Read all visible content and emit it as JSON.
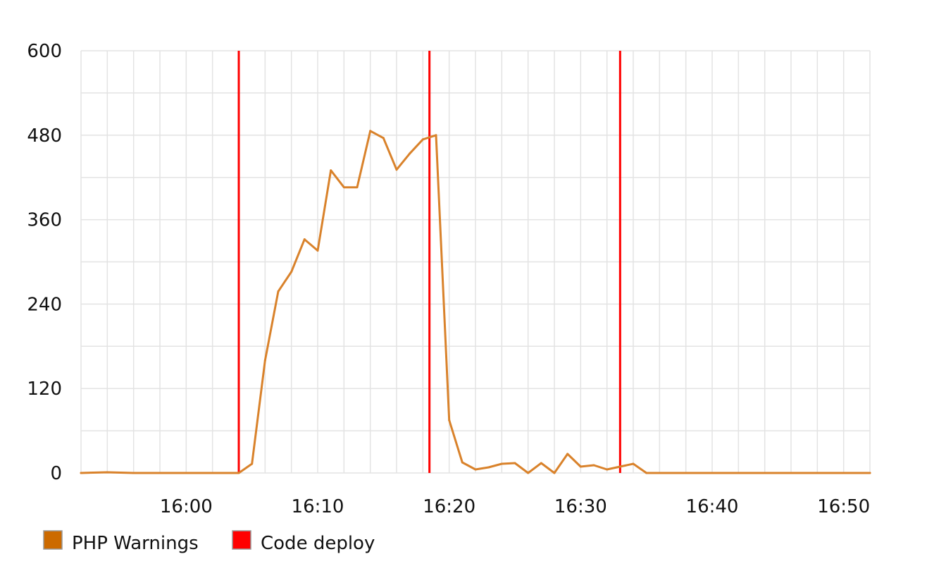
{
  "chart_data": {
    "type": "line",
    "title": "",
    "xlabel": "",
    "ylabel": "",
    "ylim": [
      0,
      600
    ],
    "yticks": [
      0,
      120,
      240,
      360,
      480,
      600
    ],
    "xlim": [
      "15:52",
      "16:52"
    ],
    "xticks": [
      "16:00",
      "16:10",
      "16:20",
      "16:30",
      "16:40",
      "16:50"
    ],
    "grid": true,
    "legend_position": "bottom-left",
    "series": [
      {
        "name": "PHP Warnings",
        "color": "#d9822b",
        "x": [
          "15:52",
          "15:54",
          "15:56",
          "15:58",
          "16:00",
          "16:02",
          "16:04",
          "16:05",
          "16:06",
          "16:07",
          "16:08",
          "16:09",
          "16:10",
          "16:11",
          "16:12",
          "16:13",
          "16:14",
          "16:15",
          "16:16",
          "16:17",
          "16:18",
          "16:19",
          "16:20",
          "16:21",
          "16:22",
          "16:23",
          "16:24",
          "16:25",
          "16:26",
          "16:27",
          "16:28",
          "16:29",
          "16:30",
          "16:31",
          "16:32",
          "16:33",
          "16:34",
          "16:35",
          "16:40",
          "16:45",
          "16:50",
          "16:52"
        ],
        "values": [
          0,
          1,
          0,
          0,
          0,
          0,
          0,
          13,
          160,
          258,
          286,
          332,
          316,
          430,
          406,
          406,
          486,
          476,
          431,
          454,
          474,
          480,
          75,
          15,
          5,
          8,
          13,
          14,
          0,
          14,
          0,
          27,
          9,
          11,
          5,
          9,
          13,
          0,
          0,
          0,
          0,
          0
        ]
      }
    ],
    "events": {
      "name": "Code deploy",
      "color": "#ff0000",
      "times": [
        "16:04",
        "16:18.5",
        "16:33"
      ]
    }
  }
}
